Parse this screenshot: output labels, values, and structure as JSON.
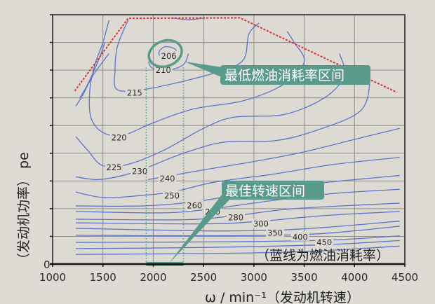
{
  "chart_data": {
    "type": "contour",
    "title": "",
    "xlabel": "ω / min⁻¹（发动机转速）",
    "ylabel": "（发动机功率） pe",
    "xlim": [
      1000,
      4500
    ],
    "x_ticks": [
      "1000",
      "1500",
      "2000",
      "2500",
      "3000",
      "3500",
      "4000",
      "4500"
    ],
    "y_ticks": [
      "0"
    ],
    "grid": true,
    "line_color": "#5b74c8",
    "boundary_color": "#d9323a",
    "annotation_color": "#5a9a8a",
    "boundary": [
      [
        1220,
        6.25
      ],
      [
        1750,
        8.87
      ],
      [
        2860,
        8.89
      ],
      [
        4420,
        6.2
      ]
    ],
    "contours": [
      {
        "level": "206",
        "points": [
          [
            2060,
            7.7
          ],
          [
            2120,
            7.85
          ],
          [
            2220,
            7.75
          ],
          [
            2220,
            7.5
          ],
          [
            2120,
            7.45
          ],
          [
            2060,
            7.55
          ],
          [
            2060,
            7.7
          ]
        ]
      },
      {
        "level": "210",
        "points": [
          [
            1950,
            7.3
          ],
          [
            2000,
            7.05
          ],
          [
            2150,
            7.0
          ],
          [
            2300,
            7.2
          ],
          [
            2350,
            7.6
          ]
        ]
      },
      {
        "level": "215",
        "points": [
          [
            1750,
            8.8
          ],
          [
            1700,
            8.4
          ],
          [
            1640,
            7.8
          ],
          [
            1620,
            7.0
          ],
          [
            1640,
            6.3
          ],
          [
            1900,
            6.3
          ],
          [
            2300,
            6.6
          ],
          [
            2700,
            7.0
          ],
          [
            2900,
            7.4
          ],
          [
            2950,
            8.3
          ],
          [
            3050,
            8.7
          ]
        ]
      },
      {
        "level": "220",
        "points": [
          [
            1560,
            8.8
          ],
          [
            1500,
            8.0
          ],
          [
            1420,
            7.2
          ],
          [
            1370,
            6.3
          ],
          [
            1380,
            5.3
          ],
          [
            1500,
            4.75
          ],
          [
            1700,
            4.65
          ],
          [
            2000,
            5.1
          ],
          [
            2400,
            5.6
          ],
          [
            2900,
            5.9
          ],
          [
            3300,
            6.5
          ],
          [
            3500,
            7.3
          ],
          [
            3400,
            8.0
          ],
          [
            3330,
            8.4
          ]
        ]
      },
      {
        "level": "225",
        "points": [
          [
            1230,
            4.6
          ],
          [
            1350,
            4.1
          ],
          [
            1500,
            3.55
          ],
          [
            1750,
            3.6
          ],
          [
            2100,
            4.1
          ],
          [
            2500,
            4.9
          ],
          [
            2800,
            5.3
          ],
          [
            3300,
            5.4
          ],
          [
            3700,
            6.0
          ],
          [
            3900,
            6.8
          ],
          [
            3850,
            7.6
          ]
        ]
      },
      {
        "level": "230",
        "points": [
          [
            1230,
            3.15
          ],
          [
            1450,
            3.05
          ],
          [
            1700,
            3.2
          ],
          [
            1950,
            3.5
          ],
          [
            2300,
            4.0
          ],
          [
            2700,
            4.4
          ],
          [
            3200,
            4.45
          ],
          [
            3600,
            4.8
          ],
          [
            4050,
            5.5
          ],
          [
            4150,
            6.5
          ],
          [
            4100,
            6.8
          ]
        ]
      },
      {
        "level": "240",
        "points": [
          [
            1950,
            3.05
          ],
          [
            2500,
            3.4
          ],
          [
            3000,
            3.7
          ],
          [
            3500,
            4.05
          ],
          [
            4000,
            4.5
          ],
          [
            4450,
            4.9
          ]
        ]
      },
      {
        "level": "250",
        "points": [
          [
            1230,
            2.6
          ],
          [
            1500,
            2.4
          ],
          [
            1800,
            2.45
          ],
          [
            2185,
            2.6
          ],
          [
            2600,
            2.95
          ],
          [
            3200,
            3.25
          ],
          [
            3800,
            3.6
          ],
          [
            4450,
            3.85
          ]
        ]
      },
      {
        "level": "260",
        "points": [
          [
            1230,
            2.1
          ],
          [
            1900,
            2.1
          ],
          [
            2410,
            2.25
          ],
          [
            3000,
            2.6
          ],
          [
            3600,
            2.9
          ],
          [
            4450,
            3.2
          ]
        ]
      },
      {
        "level": "270",
        "points": [
          [
            1230,
            1.9
          ],
          [
            2100,
            1.85
          ],
          [
            2590,
            2.0
          ],
          [
            3200,
            2.3
          ],
          [
            3800,
            2.55
          ],
          [
            4450,
            2.7
          ]
        ]
      },
      {
        "level": "280",
        "points": [
          [
            1230,
            1.62
          ],
          [
            2300,
            1.6
          ],
          [
            2820,
            1.75
          ],
          [
            3400,
            2.0
          ],
          [
            4450,
            2.2
          ]
        ]
      },
      {
        "level": "300",
        "points": [
          [
            1230,
            1.49
          ],
          [
            2500,
            1.45
          ],
          [
            3070,
            1.55
          ],
          [
            3700,
            1.75
          ],
          [
            4450,
            1.9
          ]
        ]
      },
      {
        "level": "350",
        "points": [
          [
            1230,
            1.29
          ],
          [
            2500,
            1.2
          ],
          [
            3210,
            1.22
          ],
          [
            3800,
            1.35
          ],
          [
            4450,
            1.55
          ]
        ]
      },
      {
        "level": "400",
        "points": [
          [
            1230,
            1.04
          ],
          [
            2500,
            1.02
          ],
          [
            3460,
            1.06
          ],
          [
            4000,
            1.2
          ],
          [
            4450,
            1.37
          ]
        ]
      },
      {
        "level": "450",
        "points": [
          [
            1230,
            0.78
          ],
          [
            2500,
            0.8
          ],
          [
            3700,
            0.86
          ],
          [
            4450,
            1.02
          ]
        ]
      },
      {
        "level": "",
        "points": [
          [
            1230,
            0.56
          ],
          [
            2500,
            0.6
          ],
          [
            3700,
            0.7
          ],
          [
            4450,
            0.85
          ]
        ]
      },
      {
        "level": "",
        "points": [
          [
            1230,
            0.35
          ],
          [
            2500,
            0.38
          ],
          [
            3500,
            0.45
          ],
          [
            4450,
            0.65
          ]
        ]
      },
      {
        "level": "",
        "points": [
          [
            1270,
            6.0
          ],
          [
            1350,
            6.5
          ],
          [
            1450,
            7.3
          ],
          [
            1520,
            8.0
          ]
        ]
      },
      {
        "level": "",
        "points": [
          [
            1230,
            5.7
          ],
          [
            1300,
            6.1
          ],
          [
            1400,
            6.8
          ],
          [
            1560,
            7.6
          ]
        ]
      },
      {
        "level": "",
        "points": [
          [
            2200,
            8.88
          ],
          [
            2350,
            8.82
          ],
          [
            2500,
            8.88
          ]
        ]
      }
    ],
    "best_speed_range": [
      1930,
      2300
    ],
    "annotations": {
      "lowest_consumption": "最低燃油消耗率区间",
      "best_speed": "最佳转速区间",
      "note": "（蓝线为燃油消耗率）"
    }
  }
}
